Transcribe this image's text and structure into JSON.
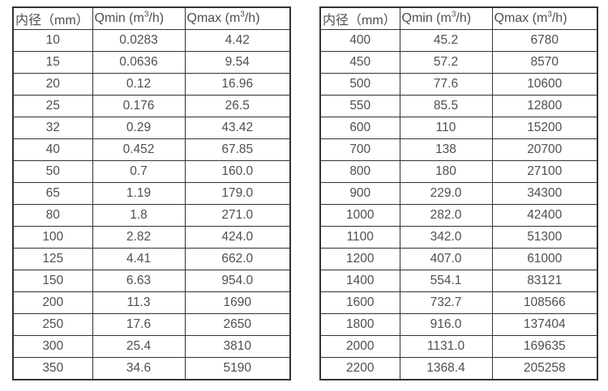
{
  "style": {
    "border_color": "#333333",
    "text_color": "#4f4f4f",
    "background": "#ffffff"
  },
  "tables": [
    {
      "name": "flow-spec-table-small-diameters",
      "headers": [
        {
          "pre": "内径（mm）",
          "sup": "",
          "post": ""
        },
        {
          "pre": "Qmin (m",
          "sup": "3",
          "post": "/h)"
        },
        {
          "pre": "Qmax (m",
          "sup": "3",
          "post": "/h)"
        }
      ],
      "rows": [
        [
          "10",
          "0.0283",
          "4.42"
        ],
        [
          "15",
          "0.0636",
          "9.54"
        ],
        [
          "20",
          "0.12",
          "16.96"
        ],
        [
          "25",
          "0.176",
          "26.5"
        ],
        [
          "32",
          "0.29",
          "43.42"
        ],
        [
          "40",
          "0.452",
          "67.85"
        ],
        [
          "50",
          "0.7",
          "160.0"
        ],
        [
          "65",
          "1.19",
          "179.0"
        ],
        [
          "80",
          "1.8",
          "271.0"
        ],
        [
          "100",
          "2.82",
          "424.0"
        ],
        [
          "125",
          "4.41",
          "662.0"
        ],
        [
          "150",
          "6.63",
          "954.0"
        ],
        [
          "200",
          "11.3",
          "1690"
        ],
        [
          "250",
          "17.6",
          "2650"
        ],
        [
          "300",
          "25.4",
          "3810"
        ],
        [
          "350",
          "34.6",
          "5190"
        ]
      ]
    },
    {
      "name": "flow-spec-table-large-diameters",
      "headers": [
        {
          "pre": "内径（mm）",
          "sup": "",
          "post": ""
        },
        {
          "pre": "Qmin (m",
          "sup": "3",
          "post": "/h)"
        },
        {
          "pre": "Qmax (m",
          "sup": "3",
          "post": "/h)"
        }
      ],
      "rows": [
        [
          "400",
          "45.2",
          "6780"
        ],
        [
          "450",
          "57.2",
          "8570"
        ],
        [
          "500",
          "77.6",
          "10600"
        ],
        [
          "550",
          "85.5",
          "12800"
        ],
        [
          "600",
          "110",
          "15200"
        ],
        [
          "700",
          "138",
          "20700"
        ],
        [
          "800",
          "180",
          "27100"
        ],
        [
          "900",
          "229.0",
          "34300"
        ],
        [
          "1000",
          "282.0",
          "42400"
        ],
        [
          "1100",
          "342.0",
          "51300"
        ],
        [
          "1200",
          "407.0",
          "61000"
        ],
        [
          "1400",
          "554.1",
          "83121"
        ],
        [
          "1600",
          "732.7",
          "108566"
        ],
        [
          "1800",
          "916.0",
          "137404"
        ],
        [
          "2000",
          "1131.0",
          "169635"
        ],
        [
          "2200",
          "1368.4",
          "205258"
        ]
      ]
    }
  ]
}
